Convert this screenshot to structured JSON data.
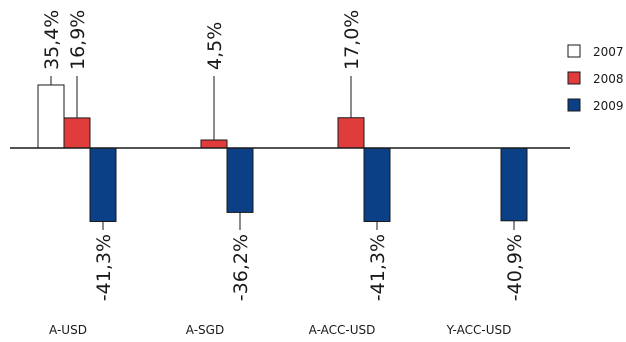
{
  "chart_data": {
    "type": "bar",
    "categories": [
      "A-USD",
      "A-SGD",
      "A-ACC-USD",
      "Y-ACC-USD"
    ],
    "series": [
      {
        "name": "2007",
        "color": "#ffffff",
        "values": [
          35.4,
          null,
          null,
          null
        ],
        "labels": [
          "35,4%",
          null,
          null,
          null
        ]
      },
      {
        "name": "2008",
        "color": "#e03c3c",
        "values": [
          16.9,
          4.5,
          17.0,
          null
        ],
        "labels": [
          "16,9%",
          "4,5%",
          "17,0%",
          null
        ]
      },
      {
        "name": "2009",
        "color": "#0b3f86",
        "values": [
          -41.3,
          -36.2,
          -41.3,
          -40.9
        ],
        "labels": [
          "-41,3%",
          "-36,2%",
          "-41,3%",
          "-40,9%"
        ]
      }
    ],
    "legend_position": "right",
    "grid": false,
    "ylim": [
      -45,
      40
    ]
  }
}
